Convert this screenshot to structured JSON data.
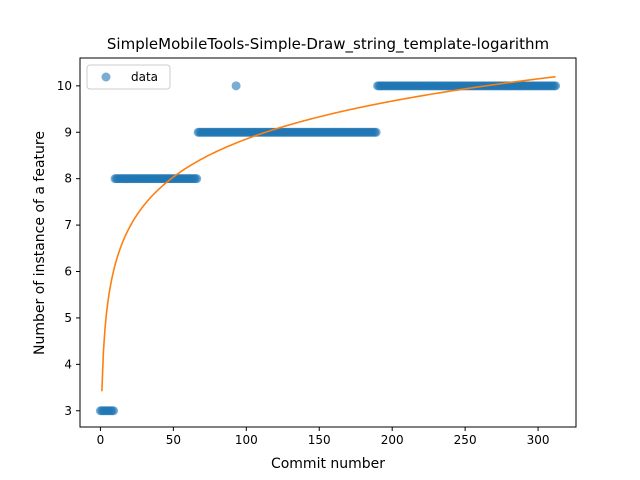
{
  "chart_data": {
    "type": "scatter",
    "title": "SimpleMobileTools-Simple-Draw_string_template-logarithm",
    "xlabel": "Commit number",
    "ylabel": "Number of instance of a feature",
    "xlim": [
      -14,
      326
    ],
    "ylim": [
      2.65,
      10.6
    ],
    "xticks": [
      0,
      50,
      100,
      150,
      200,
      250,
      300
    ],
    "yticks": [
      3,
      4,
      5,
      6,
      7,
      8,
      9,
      10
    ],
    "grid": false,
    "legend": {
      "placement": "top-left",
      "entries": [
        "data"
      ]
    },
    "series": [
      {
        "name": "data",
        "kind": "scatter",
        "color": "#1f77b4",
        "segments": [
          {
            "x_start": 0,
            "x_end": 9,
            "y": 3
          },
          {
            "x_start": 10,
            "x_end": 66,
            "y": 8
          },
          {
            "x_start": 67,
            "x_end": 189,
            "y": 9
          },
          {
            "x_start": 190,
            "x_end": 312,
            "y": 10
          }
        ],
        "points": [
          {
            "x": 93,
            "y": 10
          }
        ]
      },
      {
        "kind": "fit-line",
        "color": "#ff7f0e",
        "model": "logarithmic",
        "a": 3.42,
        "b": 1.18,
        "x_range": [
          1,
          312
        ]
      }
    ]
  }
}
